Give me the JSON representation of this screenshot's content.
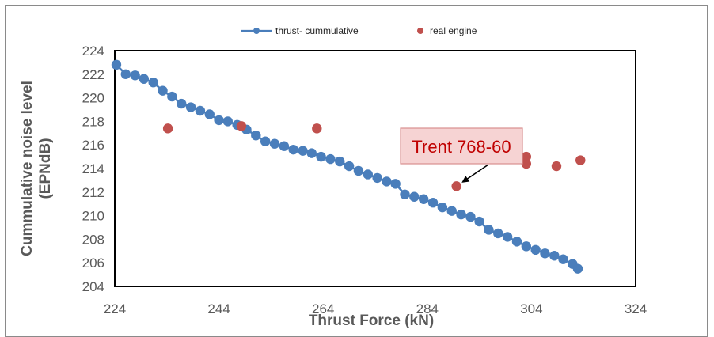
{
  "chart_data": {
    "type": "scatter",
    "xlabel": "Thrust Force (kN)",
    "ylabel_lines": [
      "Cummulative noise level",
      "(EPNdB)"
    ],
    "xlim": [
      224,
      324
    ],
    "ylim": [
      204,
      224
    ],
    "x_ticks": [
      224,
      244,
      264,
      284,
      304,
      324
    ],
    "y_ticks": [
      204,
      206,
      208,
      210,
      212,
      214,
      216,
      218,
      220,
      222,
      224
    ],
    "grid": false,
    "legend_position": "top",
    "series": [
      {
        "name": "thrust- cummulative",
        "style": "line-markers",
        "color": "#4a7ebb",
        "points": [
          [
            224.3,
            222.8
          ],
          [
            226.1,
            222.0
          ],
          [
            227.9,
            221.9
          ],
          [
            229.6,
            221.6
          ],
          [
            231.4,
            221.3
          ],
          [
            233.2,
            220.6
          ],
          [
            235.0,
            220.1
          ],
          [
            236.8,
            219.5
          ],
          [
            238.6,
            219.2
          ],
          [
            240.4,
            218.9
          ],
          [
            242.2,
            218.6
          ],
          [
            244.0,
            218.1
          ],
          [
            245.7,
            218.0
          ],
          [
            247.5,
            217.7
          ],
          [
            249.3,
            217.3
          ],
          [
            251.1,
            216.8
          ],
          [
            252.9,
            216.3
          ],
          [
            254.7,
            216.1
          ],
          [
            256.5,
            215.9
          ],
          [
            258.3,
            215.6
          ],
          [
            260.1,
            215.5
          ],
          [
            261.8,
            215.3
          ],
          [
            263.6,
            215.0
          ],
          [
            265.4,
            214.8
          ],
          [
            267.2,
            214.6
          ],
          [
            269.0,
            214.2
          ],
          [
            270.8,
            213.8
          ],
          [
            272.6,
            213.5
          ],
          [
            274.4,
            213.2
          ],
          [
            276.2,
            212.9
          ],
          [
            277.9,
            212.7
          ],
          [
            279.7,
            211.8
          ],
          [
            281.5,
            211.6
          ],
          [
            283.3,
            211.4
          ],
          [
            285.1,
            211.1
          ],
          [
            286.9,
            210.7
          ],
          [
            288.7,
            210.4
          ],
          [
            290.5,
            210.1
          ],
          [
            292.3,
            209.9
          ],
          [
            294.0,
            209.5
          ],
          [
            295.8,
            208.8
          ],
          [
            297.6,
            208.5
          ],
          [
            299.4,
            208.2
          ],
          [
            301.2,
            207.8
          ],
          [
            303.0,
            207.4
          ],
          [
            304.8,
            207.1
          ],
          [
            306.6,
            206.8
          ],
          [
            308.4,
            206.6
          ],
          [
            310.1,
            206.3
          ],
          [
            311.9,
            205.9
          ],
          [
            312.9,
            205.5
          ]
        ]
      },
      {
        "name": "real engine",
        "style": "markers",
        "color": "#c0504d",
        "points": [
          [
            234.2,
            217.4
          ],
          [
            248.3,
            217.6
          ],
          [
            262.8,
            217.4
          ],
          [
            289.6,
            212.5
          ],
          [
            303.0,
            215.0
          ],
          [
            303.0,
            214.4
          ],
          [
            308.8,
            214.2
          ],
          [
            313.4,
            214.7
          ]
        ]
      }
    ],
    "annotations": [
      {
        "text": "Trent 768-60",
        "target": [
          289.6,
          212.5
        ]
      }
    ]
  }
}
